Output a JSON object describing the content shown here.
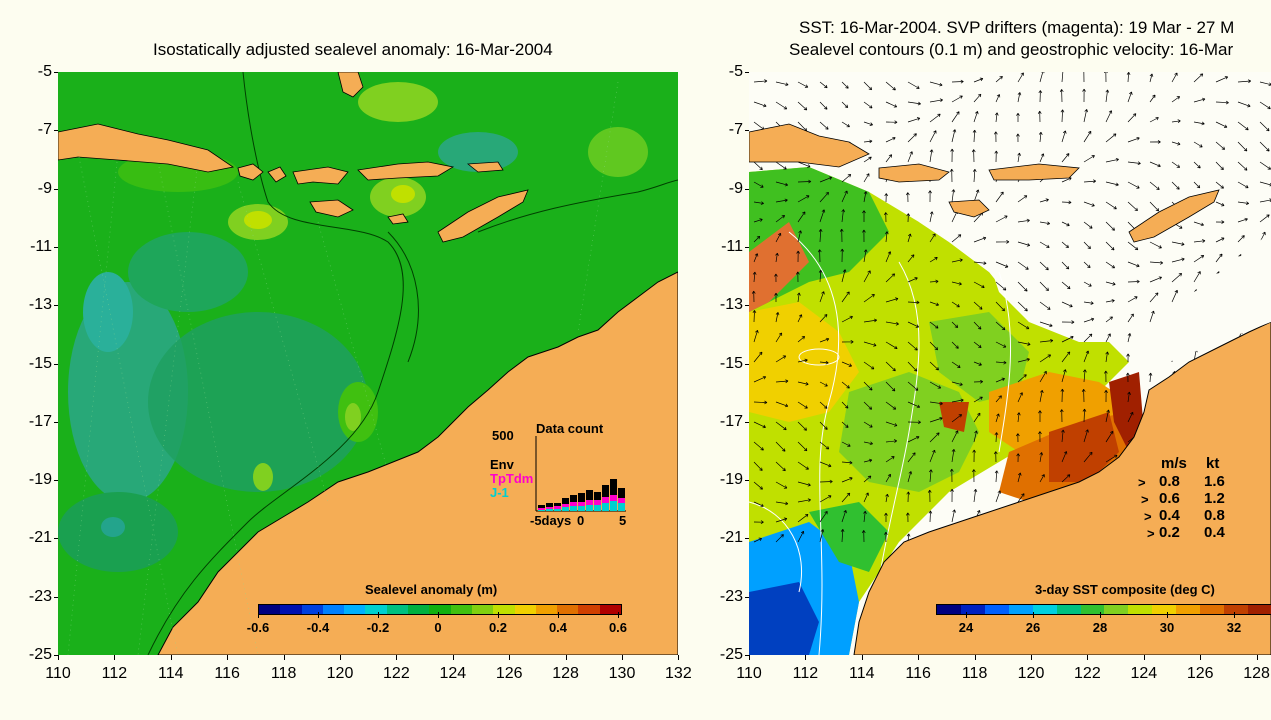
{
  "left": {
    "title": "Isostatically adjusted sealevel anomaly: 16-Mar-2004",
    "y_ticks": [
      "-5",
      "-7",
      "-9",
      "-11",
      "-13",
      "-15",
      "-17",
      "-19",
      "-21",
      "-23",
      "-25"
    ],
    "x_ticks": [
      "110",
      "112",
      "114",
      "116",
      "118",
      "120",
      "122",
      "124",
      "126",
      "128",
      "130",
      "132"
    ],
    "colorbar": {
      "label": "Sealevel anomaly (m)",
      "ticks": [
        "-0.6",
        "-0.4",
        "-0.2",
        "0",
        "0.2",
        "0.4",
        "0.6"
      ],
      "colors": [
        "#000080",
        "#0010b0",
        "#0040e0",
        "#0080ff",
        "#00b0ff",
        "#00d0d0",
        "#00c080",
        "#00b040",
        "#10b010",
        "#40c010",
        "#80d010",
        "#c0e000",
        "#f0d000",
        "#f0a000",
        "#e07000",
        "#d04000",
        "#b00000"
      ]
    },
    "inset": {
      "title": "Data count",
      "y_label": "500",
      "legend": [
        "Env",
        "TpTdm",
        "J-1"
      ],
      "legend_colors": [
        "#000000",
        "#ff00cc",
        "#00d0d0"
      ],
      "x_ticks": [
        "-5days",
        "0",
        "5"
      ]
    }
  },
  "right": {
    "title_line1": "SST: 16-Mar-2004. SVP drifters (magenta): 19 Mar - 27 M",
    "title_line2": "Sealevel contours (0.1 m) and geostrophic velocity: 16-Mar",
    "y_ticks": [
      "-5",
      "-7",
      "-9",
      "-11",
      "-13",
      "-15",
      "-17",
      "-19",
      "-21",
      "-23",
      "-25"
    ],
    "x_ticks": [
      "110",
      "112",
      "114",
      "116",
      "118",
      "120",
      "122",
      "124",
      "126",
      "128"
    ],
    "colorbar": {
      "label": "3-day SST composite (deg C)",
      "ticks": [
        "24",
        "26",
        "28",
        "30",
        "32"
      ],
      "colors": [
        "#000080",
        "#0020c0",
        "#0060ff",
        "#00a0ff",
        "#00d0e0",
        "#00c080",
        "#30c030",
        "#80d020",
        "#c0e000",
        "#f0d000",
        "#f0a000",
        "#e07000",
        "#c04000",
        "#a02000"
      ]
    },
    "speed_legend": {
      "header_ms": "m/s",
      "header_kt": "kt",
      "rows": [
        {
          "ms": "0.8",
          "kt": "1.6"
        },
        {
          "ms": "0.6",
          "kt": "1.2"
        },
        {
          "ms": "0.4",
          "kt": "0.8"
        },
        {
          "ms": "0.2",
          "kt": "0.4"
        }
      ]
    }
  },
  "colors": {
    "land": "#f5ad55",
    "sea_left": "#1ab01a",
    "background": "#fdfdf0"
  }
}
